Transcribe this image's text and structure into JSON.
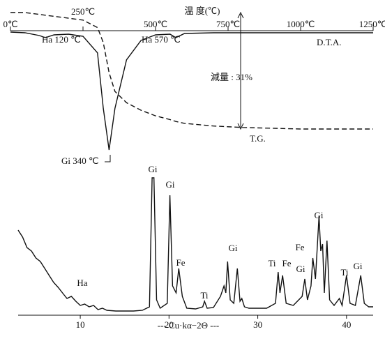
{
  "chart_data": [
    {
      "type": "line",
      "title": "温 度(℃)",
      "x": [
        0,
        50,
        100,
        120,
        150,
        200,
        250,
        300,
        320,
        340,
        360,
        400,
        450,
        500,
        550,
        570,
        600,
        700,
        800,
        900,
        1000,
        1100,
        1250
      ],
      "xlim": [
        0,
        1250
      ],
      "xticks": [
        {
          "value": 0,
          "label": "0℃"
        },
        {
          "value": 250,
          "label": "250℃"
        },
        {
          "value": 500,
          "label": "500℃"
        },
        {
          "value": 750,
          "label": "750℃"
        },
        {
          "value": 1000,
          "label": "1000℃"
        },
        {
          "value": 1250,
          "label": "1250℃"
        }
      ],
      "ylim": [
        -170,
        0
      ],
      "y2lim": [
        -31,
        0
      ],
      "series": [
        {
          "name": "D.T.A.",
          "color": "#111111",
          "dash": false,
          "values": [
            0,
            -1,
            -5,
            -8,
            -4,
            -3,
            -6,
            -30,
            -110,
            -170,
            -110,
            -40,
            -12,
            -4,
            -3,
            -8,
            -2,
            -1,
            -1,
            -1,
            -1,
            -1,
            -1
          ]
        },
        {
          "name": "T.G.",
          "color": "#111111",
          "dash": true,
          "axis": "y2",
          "values": [
            0,
            0,
            -0.5,
            -0.7,
            -1,
            -1.5,
            -2,
            -4,
            -8,
            -16,
            -21,
            -24,
            -26,
            -27.5,
            -28.5,
            -29,
            -29.5,
            -30.2,
            -30.6,
            -30.8,
            -31,
            -31,
            -31
          ]
        }
      ],
      "annotations": [
        "Ha 120 ℃",
        "Gi 340 ℃",
        "Ha 570 ℃",
        "減量 : 31%"
      ]
    },
    {
      "type": "line",
      "xlabel": "--- Cu·kα−2Θ ---",
      "x": [
        3,
        3.5,
        4,
        4.5,
        5,
        5.5,
        6,
        6.5,
        7,
        7.5,
        8,
        8.5,
        9,
        9.5,
        10,
        10.5,
        11,
        11.5,
        12,
        12.5,
        13,
        14,
        15,
        16,
        17,
        17.8,
        18.1,
        18.3,
        18.6,
        19,
        19.8,
        20.1,
        20.4,
        20.8,
        21.1,
        21.5,
        22,
        23,
        23.8,
        24,
        24.3,
        25,
        25.8,
        26.2,
        26.4,
        26.6,
        26.9,
        27.3,
        27.7,
        28,
        28.2,
        28.5,
        29,
        30,
        31,
        32,
        32.3,
        32.5,
        32.8,
        33.2,
        34,
        35,
        35.3,
        35.6,
        36,
        36.2,
        36.5,
        36.9,
        37.1,
        37.3,
        37.5,
        37.8,
        38.1,
        38.6,
        39.2,
        39.5,
        40,
        40.4,
        41,
        41.6,
        42,
        42.5,
        43
      ],
      "xlim": [
        3,
        43
      ],
      "xticks": [
        10,
        20,
        30,
        40
      ],
      "ylim": [
        0,
        210
      ],
      "series": [
        {
          "color": "#111111",
          "values": [
            120,
            110,
            95,
            90,
            80,
            75,
            65,
            55,
            45,
            38,
            30,
            22,
            25,
            18,
            12,
            14,
            10,
            12,
            6,
            8,
            5,
            4,
            4,
            4,
            5,
            10,
            195,
            195,
            20,
            8,
            15,
            170,
            40,
            30,
            65,
            25,
            8,
            7,
            10,
            18,
            8,
            9,
            25,
            40,
            30,
            75,
            20,
            15,
            65,
            18,
            22,
            10,
            8,
            8,
            8,
            15,
            60,
            30,
            55,
            15,
            12,
            25,
            50,
            20,
            40,
            80,
            50,
            140,
            90,
            100,
            30,
            105,
            20,
            12,
            22,
            12,
            55,
            15,
            12,
            55,
            15,
            10,
            10
          ]
        }
      ],
      "annotations": [
        "Gi",
        "Gi",
        "Fe",
        "Ti",
        "Gi",
        "Ti",
        "Fe",
        "Gi",
        "Fe",
        "Gi",
        "Ti",
        "Gi",
        "Ha"
      ]
    }
  ]
}
